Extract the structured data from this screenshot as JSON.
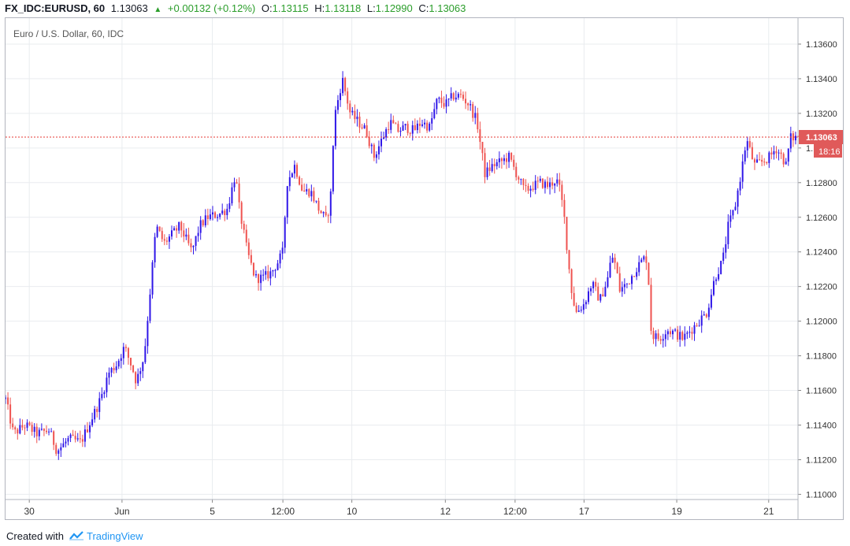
{
  "header": {
    "symbol": "FX_IDC:EURUSD, 60",
    "last": "1.13063",
    "change": "+0.00132 (+0.12%)",
    "o_label": "O:",
    "o": "1.13115",
    "h_label": "H:",
    "h": "1.13118",
    "l_label": "L:",
    "l": "1.12990",
    "c_label": "C:",
    "c": "1.13063"
  },
  "footer": {
    "created_with": "Created with",
    "brand": "TradingView"
  },
  "colors": {
    "up": "#2f16e8",
    "down": "#ef5350",
    "grid": "#e9ecef",
    "price_line": "#e53935",
    "label_bg": "#e05a5a"
  },
  "chart_data": {
    "type": "candlestick",
    "title": "Euro / U.S. Dollar, 60, IDC",
    "ylim": [
      1.1097,
      1.1375
    ],
    "y_ticks": [
      "1.11000",
      "1.11200",
      "1.11400",
      "1.11600",
      "1.11800",
      "1.12000",
      "1.12200",
      "1.12400",
      "1.12600",
      "1.12800",
      "1.13000",
      "1.13200",
      "1.13400",
      "1.13600"
    ],
    "x_labels": [
      {
        "label": "30",
        "t": 0.03
      },
      {
        "label": "Jun",
        "t": 0.147
      },
      {
        "label": "5",
        "t": 0.261
      },
      {
        "label": "12:00",
        "t": 0.35
      },
      {
        "label": "10",
        "t": 0.437
      },
      {
        "label": "12",
        "t": 0.555
      },
      {
        "label": "12:00",
        "t": 0.643
      },
      {
        "label": "17",
        "t": 0.73
      },
      {
        "label": "19",
        "t": 0.847
      },
      {
        "label": "21",
        "t": 0.963
      }
    ],
    "grid": true,
    "last_price": 1.13063,
    "last_price_label": "1.13063",
    "countdown": "18:16",
    "path": [
      [
        0.0,
        1.1155
      ],
      [
        0.01,
        1.1135
      ],
      [
        0.025,
        1.114
      ],
      [
        0.04,
        1.1135
      ],
      [
        0.055,
        1.1137
      ],
      [
        0.065,
        1.1125
      ],
      [
        0.08,
        1.1132
      ],
      [
        0.095,
        1.113
      ],
      [
        0.1,
        1.1135
      ],
      [
        0.11,
        1.1145
      ],
      [
        0.12,
        1.1155
      ],
      [
        0.13,
        1.117
      ],
      [
        0.14,
        1.1175
      ],
      [
        0.15,
        1.1185
      ],
      [
        0.16,
        1.1173
      ],
      [
        0.165,
        1.1165
      ],
      [
        0.175,
        1.118
      ],
      [
        0.18,
        1.1205
      ],
      [
        0.19,
        1.1255
      ],
      [
        0.2,
        1.1245
      ],
      [
        0.21,
        1.125
      ],
      [
        0.22,
        1.1255
      ],
      [
        0.235,
        1.124
      ],
      [
        0.245,
        1.1255
      ],
      [
        0.255,
        1.126
      ],
      [
        0.27,
        1.1262
      ],
      [
        0.28,
        1.1265
      ],
      [
        0.29,
        1.1285
      ],
      [
        0.295,
        1.1265
      ],
      [
        0.305,
        1.124
      ],
      [
        0.315,
        1.1225
      ],
      [
        0.325,
        1.1225
      ],
      [
        0.335,
        1.1228
      ],
      [
        0.345,
        1.1235
      ],
      [
        0.35,
        1.124
      ],
      [
        0.355,
        1.128
      ],
      [
        0.365,
        1.129
      ],
      [
        0.375,
        1.1275
      ],
      [
        0.385,
        1.1275
      ],
      [
        0.395,
        1.1265
      ],
      [
        0.405,
        1.1258
      ],
      [
        0.41,
        1.127
      ],
      [
        0.415,
        1.1318
      ],
      [
        0.425,
        1.134
      ],
      [
        0.435,
        1.132
      ],
      [
        0.445,
        1.1315
      ],
      [
        0.455,
        1.131
      ],
      [
        0.465,
        1.1295
      ],
      [
        0.475,
        1.1305
      ],
      [
        0.485,
        1.1315
      ],
      [
        0.495,
        1.131
      ],
      [
        0.505,
        1.1312
      ],
      [
        0.515,
        1.131
      ],
      [
        0.525,
        1.1315
      ],
      [
        0.535,
        1.1312
      ],
      [
        0.545,
        1.1328
      ],
      [
        0.555,
        1.1325
      ],
      [
        0.565,
        1.133
      ],
      [
        0.575,
        1.133
      ],
      [
        0.585,
        1.1325
      ],
      [
        0.595,
        1.1315
      ],
      [
        0.605,
        1.1285
      ],
      [
        0.615,
        1.129
      ],
      [
        0.625,
        1.1292
      ],
      [
        0.635,
        1.1295
      ],
      [
        0.645,
        1.1285
      ],
      [
        0.655,
        1.1275
      ],
      [
        0.665,
        1.1278
      ],
      [
        0.675,
        1.128
      ],
      [
        0.685,
        1.1278
      ],
      [
        0.695,
        1.1282
      ],
      [
        0.7,
        1.1275
      ],
      [
        0.705,
        1.126
      ],
      [
        0.71,
        1.1235
      ],
      [
        0.715,
        1.1215
      ],
      [
        0.72,
        1.1205
      ],
      [
        0.73,
        1.121
      ],
      [
        0.74,
        1.1222
      ],
      [
        0.75,
        1.1212
      ],
      [
        0.76,
        1.1225
      ],
      [
        0.765,
        1.1238
      ],
      [
        0.77,
        1.1232
      ],
      [
        0.775,
        1.1218
      ],
      [
        0.785,
        1.1222
      ],
      [
        0.795,
        1.123
      ],
      [
        0.805,
        1.1236
      ],
      [
        0.81,
        1.1236
      ],
      [
        0.815,
        1.1192
      ],
      [
        0.825,
        1.119
      ],
      [
        0.835,
        1.1195
      ],
      [
        0.845,
        1.1193
      ],
      [
        0.855,
        1.119
      ],
      [
        0.865,
        1.1195
      ],
      [
        0.875,
        1.12
      ],
      [
        0.885,
        1.1205
      ],
      [
        0.895,
        1.1225
      ],
      [
        0.905,
        1.1235
      ],
      [
        0.912,
        1.1255
      ],
      [
        0.92,
        1.1265
      ],
      [
        0.928,
        1.1285
      ],
      [
        0.935,
        1.1305
      ],
      [
        0.945,
        1.129
      ],
      [
        0.955,
        1.1292
      ],
      [
        0.965,
        1.1295
      ],
      [
        0.972,
        1.13
      ],
      [
        0.98,
        1.1295
      ],
      [
        0.985,
        1.129
      ],
      [
        0.99,
        1.1306
      ]
    ]
  }
}
